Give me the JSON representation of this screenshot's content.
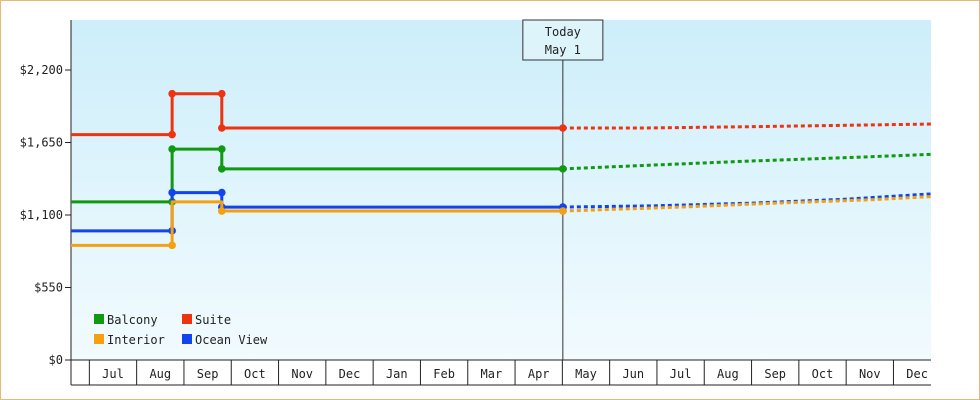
{
  "chart_data": {
    "type": "line",
    "title": "",
    "xlabel": "",
    "ylabel": "",
    "x_ticks": [
      "Jul",
      "Aug",
      "Sep",
      "Oct",
      "Nov",
      "Dec",
      "Jan",
      "Feb",
      "Mar",
      "Apr",
      "May",
      "Jun",
      "Jul",
      "Aug",
      "Sep",
      "Oct",
      "Nov",
      "Dec"
    ],
    "y_ticks": [
      "$0",
      "$550",
      "$1,100",
      "$1,650",
      "$2,200"
    ],
    "ylim": [
      0,
      2200
    ],
    "grid": false,
    "legend_position": "bottom-left",
    "today_marker": {
      "line1": "Today",
      "line2": "May 1",
      "x": 10
    },
    "series": [
      {
        "name": "Suite",
        "color": "#ee3311",
        "history": [
          [
            -0.5,
            1710
          ],
          [
            1.25,
            1710
          ],
          [
            1.25,
            2020
          ],
          [
            2.3,
            2020
          ],
          [
            2.3,
            1760
          ],
          [
            10,
            1760
          ]
        ],
        "markers": [
          [
            1.25,
            1710
          ],
          [
            1.25,
            2020
          ],
          [
            2.3,
            2020
          ],
          [
            2.3,
            1760
          ],
          [
            10,
            1760
          ]
        ],
        "forecast": [
          [
            10,
            1760
          ],
          [
            11.2,
            1760
          ],
          [
            13.5,
            1770
          ],
          [
            17.8,
            1790
          ]
        ]
      },
      {
        "name": "Balcony",
        "color": "#119911",
        "history": [
          [
            -0.5,
            1200
          ],
          [
            1.25,
            1200
          ],
          [
            1.25,
            1600
          ],
          [
            2.3,
            1600
          ],
          [
            2.3,
            1450
          ],
          [
            10,
            1450
          ]
        ],
        "markers": [
          [
            1.25,
            1200
          ],
          [
            1.25,
            1600
          ],
          [
            2.3,
            1600
          ],
          [
            2.3,
            1450
          ],
          [
            10,
            1450
          ]
        ],
        "forecast": [
          [
            10,
            1450
          ],
          [
            11.5,
            1480
          ],
          [
            13.5,
            1510
          ],
          [
            15.5,
            1535
          ],
          [
            17.8,
            1560
          ]
        ]
      },
      {
        "name": "Ocean View",
        "color": "#1144ee",
        "history": [
          [
            -0.5,
            980
          ],
          [
            1.25,
            980
          ],
          [
            1.25,
            1270
          ],
          [
            2.3,
            1270
          ],
          [
            2.3,
            1160
          ],
          [
            10,
            1160
          ]
        ],
        "markers": [
          [
            1.25,
            980
          ],
          [
            1.25,
            1270
          ],
          [
            2.3,
            1270
          ],
          [
            2.3,
            1160
          ],
          [
            10,
            1160
          ]
        ],
        "forecast": [
          [
            10,
            1160
          ],
          [
            11.5,
            1170
          ],
          [
            13.5,
            1190
          ],
          [
            15.5,
            1220
          ],
          [
            17.8,
            1260
          ]
        ]
      },
      {
        "name": "Interior",
        "color": "#f5a010",
        "history": [
          [
            -0.5,
            870
          ],
          [
            1.25,
            870
          ],
          [
            1.25,
            1200
          ],
          [
            2.3,
            1200
          ],
          [
            2.3,
            1130
          ],
          [
            10,
            1130
          ]
        ],
        "markers": [
          [
            1.25,
            870
          ],
          [
            2.3,
            1130
          ],
          [
            10,
            1130
          ]
        ],
        "forecast": [
          [
            10,
            1130
          ],
          [
            12,
            1160
          ],
          [
            14,
            1190
          ],
          [
            16,
            1215
          ],
          [
            17.8,
            1240
          ]
        ]
      }
    ],
    "legend": [
      {
        "name": "Balcony",
        "color": "#119911"
      },
      {
        "name": "Suite",
        "color": "#ee3311"
      },
      {
        "name": "Interior",
        "color": "#f5a010"
      },
      {
        "name": "Ocean View",
        "color": "#1144ee"
      }
    ]
  }
}
